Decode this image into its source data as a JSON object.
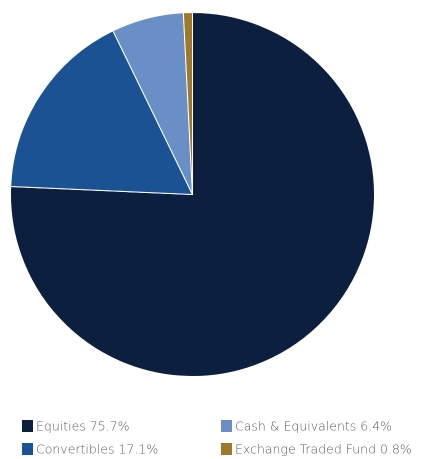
{
  "chart_data": {
    "type": "pie",
    "title": "",
    "slices": [
      {
        "label": "Equities",
        "value": 75.7,
        "display": "Equities 75.7%",
        "color": "#0c1f3f"
      },
      {
        "label": "Convertibles",
        "value": 17.1,
        "display": "Convertibles 17.1%",
        "color": "#1a5294"
      },
      {
        "label": "Cash & Equivalents",
        "value": 6.4,
        "display": "Cash & Equivalents 6.4%",
        "color": "#6a8fc6"
      },
      {
        "label": "Exchange Traded Fund",
        "value": 0.8,
        "display": "Exchange Traded Fund 0.8%",
        "color": "#a0782a"
      }
    ],
    "start_angle_deg": 0,
    "direction": "clockwise",
    "legend": {
      "placement": "bottom",
      "columns": 2,
      "order": [
        "Equities",
        "Cash & Equivalents",
        "Convertibles",
        "Exchange Traded Fund"
      ]
    }
  }
}
